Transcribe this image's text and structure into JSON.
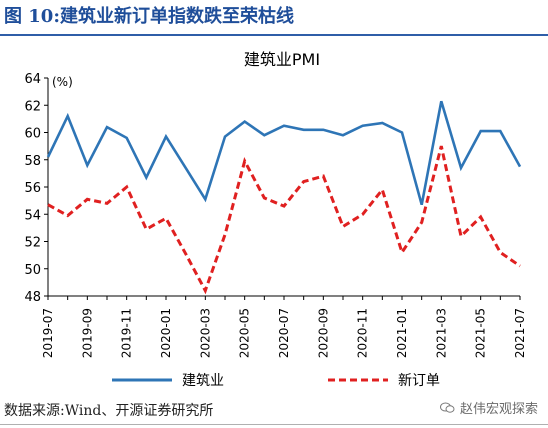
{
  "figure": {
    "title": "图 10:建筑业新订单指数跌至荣枯线",
    "source": "数据来源:Wind、开源证券研究所",
    "watermark": "赵伟宏观探索",
    "watermark_icon": "wechat-icon"
  },
  "colors": {
    "series_1": "#2e75b6",
    "series_2": "#e02020",
    "title": "#1f4e9a",
    "axis": "#000000"
  },
  "chart_data": {
    "type": "line",
    "title": "建筑业PMI",
    "ylabel": "(%)",
    "xlabel": "",
    "ylim": [
      48,
      64
    ],
    "yticks": [
      48,
      50,
      52,
      54,
      56,
      58,
      60,
      62,
      64
    ],
    "grid": false,
    "legend_position": "bottom",
    "x": [
      "2019-07",
      "2019-08",
      "2019-09",
      "2019-10",
      "2019-11",
      "2019-12",
      "2020-01",
      "2020-02",
      "2020-03",
      "2020-04",
      "2020-05",
      "2020-06",
      "2020-07",
      "2020-08",
      "2020-09",
      "2020-10",
      "2020-11",
      "2020-12",
      "2021-01",
      "2021-02",
      "2021-03",
      "2021-04",
      "2021-05",
      "2021-06",
      "2021-07"
    ],
    "xtick_labels": [
      "2019-07",
      "2019-09",
      "2019-11",
      "2020-01",
      "2020-03",
      "2020-05",
      "2020-07",
      "2020-09",
      "2020-11",
      "2021-01",
      "2021-03",
      "2021-05",
      "2021-07"
    ],
    "series": [
      {
        "name": "建筑业",
        "style": "solid",
        "values": [
          58.2,
          61.2,
          57.6,
          60.4,
          59.6,
          56.7,
          59.7,
          57.4,
          55.1,
          59.7,
          60.8,
          59.8,
          60.5,
          60.2,
          60.2,
          59.8,
          60.5,
          60.7,
          60.0,
          54.7,
          62.3,
          57.4,
          60.1,
          60.1,
          57.5
        ]
      },
      {
        "name": "新订单",
        "style": "dashed",
        "values": [
          54.7,
          53.9,
          55.1,
          54.8,
          56.0,
          52.9,
          53.7,
          51.1,
          48.4,
          52.5,
          57.9,
          55.2,
          54.6,
          56.4,
          56.8,
          53.1,
          54.0,
          55.8,
          51.2,
          53.4,
          59.0,
          52.4,
          53.8,
          51.2,
          50.2
        ]
      }
    ]
  }
}
